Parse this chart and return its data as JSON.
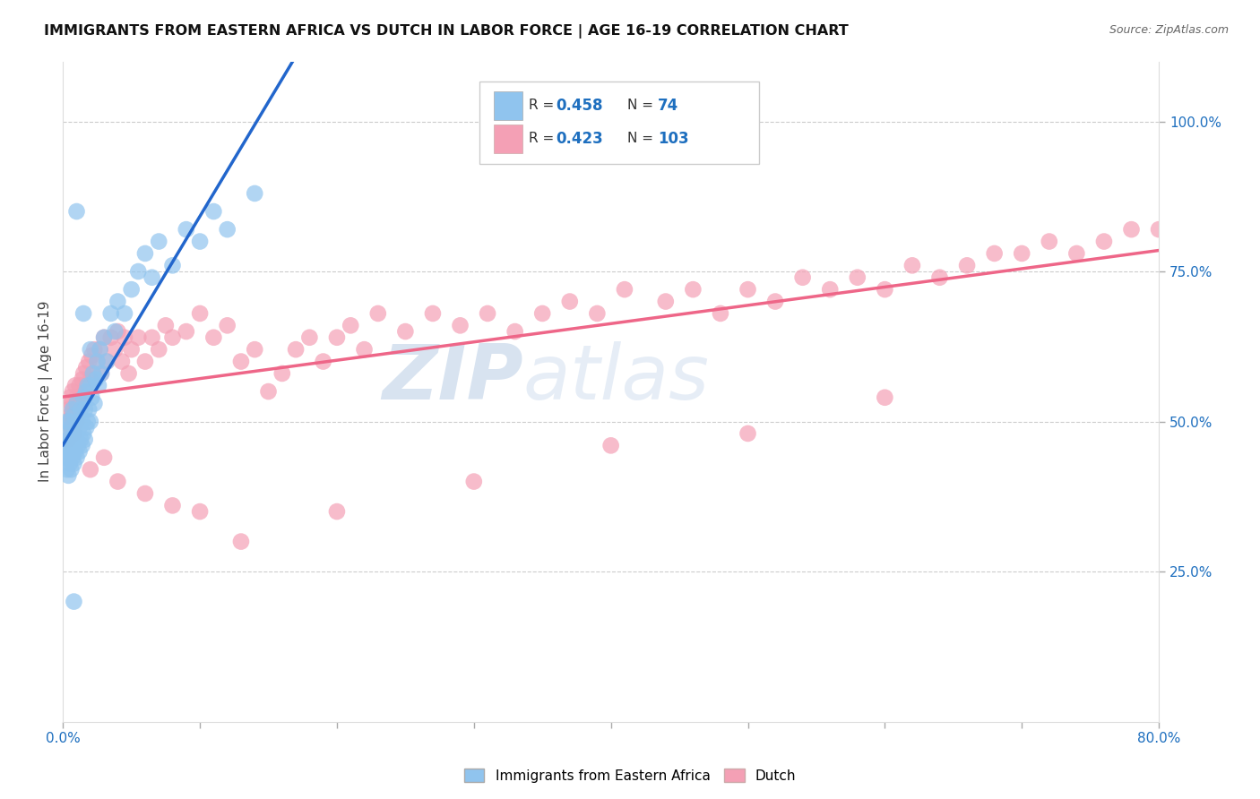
{
  "title": "IMMIGRANTS FROM EASTERN AFRICA VS DUTCH IN LABOR FORCE | AGE 16-19 CORRELATION CHART",
  "source": "Source: ZipAtlas.com",
  "ylabel": "In Labor Force | Age 16-19",
  "legend_label1": "Immigrants from Eastern Africa",
  "legend_label2": "Dutch",
  "r1": 0.458,
  "n1": 74,
  "r2": 0.423,
  "n2": 103,
  "color_blue": "#90C4EE",
  "color_pink": "#F4A0B5",
  "trendline_blue": "#2266CC",
  "trendline_pink": "#EE6688",
  "trendline_dash_color": "#AACCEE",
  "watermark_zip": "ZIP",
  "watermark_atlas": "atlas",
  "xlim": [
    0.0,
    0.8
  ],
  "ylim": [
    0.0,
    1.1
  ],
  "y_ticks_right": [
    0.25,
    0.5,
    0.75,
    1.0
  ],
  "y_tick_labels_right": [
    "25.0%",
    "50.0%",
    "75.0%",
    "100.0%"
  ],
  "x_ticks": [
    0.0,
    0.1,
    0.2,
    0.3,
    0.4,
    0.5,
    0.6,
    0.7,
    0.8
  ],
  "blue_x": [
    0.001,
    0.002,
    0.002,
    0.003,
    0.003,
    0.003,
    0.004,
    0.004,
    0.004,
    0.005,
    0.005,
    0.005,
    0.006,
    0.006,
    0.006,
    0.007,
    0.007,
    0.007,
    0.008,
    0.008,
    0.008,
    0.009,
    0.009,
    0.01,
    0.01,
    0.01,
    0.011,
    0.011,
    0.012,
    0.012,
    0.013,
    0.013,
    0.014,
    0.014,
    0.015,
    0.015,
    0.016,
    0.016,
    0.017,
    0.017,
    0.018,
    0.018,
    0.019,
    0.02,
    0.02,
    0.021,
    0.022,
    0.023,
    0.024,
    0.025,
    0.026,
    0.027,
    0.028,
    0.03,
    0.032,
    0.035,
    0.038,
    0.04,
    0.045,
    0.05,
    0.055,
    0.06,
    0.065,
    0.07,
    0.08,
    0.09,
    0.1,
    0.11,
    0.12,
    0.14,
    0.015,
    0.02,
    0.01,
    0.008
  ],
  "blue_y": [
    0.44,
    0.46,
    0.48,
    0.42,
    0.45,
    0.5,
    0.41,
    0.44,
    0.47,
    0.43,
    0.46,
    0.5,
    0.42,
    0.45,
    0.49,
    0.44,
    0.47,
    0.52,
    0.43,
    0.46,
    0.51,
    0.45,
    0.48,
    0.44,
    0.47,
    0.53,
    0.46,
    0.5,
    0.45,
    0.49,
    0.47,
    0.52,
    0.46,
    0.5,
    0.48,
    0.54,
    0.47,
    0.52,
    0.49,
    0.55,
    0.5,
    0.56,
    0.52,
    0.5,
    0.56,
    0.54,
    0.58,
    0.53,
    0.57,
    0.6,
    0.56,
    0.62,
    0.58,
    0.64,
    0.6,
    0.68,
    0.65,
    0.7,
    0.68,
    0.72,
    0.75,
    0.78,
    0.74,
    0.8,
    0.76,
    0.82,
    0.8,
    0.85,
    0.82,
    0.88,
    0.68,
    0.62,
    0.85,
    0.2
  ],
  "pink_x": [
    0.002,
    0.003,
    0.004,
    0.004,
    0.005,
    0.005,
    0.006,
    0.006,
    0.007,
    0.007,
    0.008,
    0.008,
    0.009,
    0.009,
    0.01,
    0.01,
    0.011,
    0.012,
    0.013,
    0.014,
    0.015,
    0.015,
    0.016,
    0.017,
    0.018,
    0.019,
    0.02,
    0.021,
    0.022,
    0.023,
    0.025,
    0.027,
    0.028,
    0.03,
    0.032,
    0.035,
    0.038,
    0.04,
    0.043,
    0.045,
    0.048,
    0.05,
    0.055,
    0.06,
    0.065,
    0.07,
    0.075,
    0.08,
    0.09,
    0.1,
    0.11,
    0.12,
    0.13,
    0.14,
    0.15,
    0.16,
    0.17,
    0.18,
    0.19,
    0.2,
    0.21,
    0.22,
    0.23,
    0.25,
    0.27,
    0.29,
    0.31,
    0.33,
    0.35,
    0.37,
    0.39,
    0.41,
    0.44,
    0.46,
    0.48,
    0.5,
    0.52,
    0.54,
    0.56,
    0.58,
    0.6,
    0.62,
    0.64,
    0.66,
    0.68,
    0.7,
    0.72,
    0.74,
    0.76,
    0.78,
    0.8,
    0.02,
    0.03,
    0.04,
    0.06,
    0.08,
    0.1,
    0.13,
    0.2,
    0.3,
    0.4,
    0.5,
    0.6
  ],
  "pink_y": [
    0.5,
    0.48,
    0.52,
    0.47,
    0.51,
    0.54,
    0.49,
    0.53,
    0.5,
    0.55,
    0.48,
    0.52,
    0.51,
    0.56,
    0.5,
    0.54,
    0.52,
    0.56,
    0.53,
    0.57,
    0.54,
    0.58,
    0.55,
    0.59,
    0.56,
    0.6,
    0.57,
    0.61,
    0.58,
    0.62,
    0.6,
    0.62,
    0.58,
    0.64,
    0.6,
    0.64,
    0.62,
    0.65,
    0.6,
    0.64,
    0.58,
    0.62,
    0.64,
    0.6,
    0.64,
    0.62,
    0.66,
    0.64,
    0.65,
    0.68,
    0.64,
    0.66,
    0.6,
    0.62,
    0.55,
    0.58,
    0.62,
    0.64,
    0.6,
    0.64,
    0.66,
    0.62,
    0.68,
    0.65,
    0.68,
    0.66,
    0.68,
    0.65,
    0.68,
    0.7,
    0.68,
    0.72,
    0.7,
    0.72,
    0.68,
    0.72,
    0.7,
    0.74,
    0.72,
    0.74,
    0.72,
    0.76,
    0.74,
    0.76,
    0.78,
    0.78,
    0.8,
    0.78,
    0.8,
    0.82,
    0.82,
    0.42,
    0.44,
    0.4,
    0.38,
    0.36,
    0.35,
    0.3,
    0.35,
    0.4,
    0.46,
    0.48,
    0.54
  ]
}
